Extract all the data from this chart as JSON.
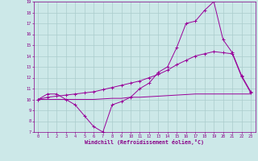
{
  "bg_color": "#cce8e8",
  "grid_color": "#aacccc",
  "line_color": "#990099",
  "xlabel": "Windchill (Refroidissement éolien,°C)",
  "xlabel_color": "#880088",
  "tick_color": "#880088",
  "xlim": [
    -0.5,
    23.5
  ],
  "ylim": [
    7,
    19
  ],
  "yticks": [
    7,
    8,
    9,
    10,
    11,
    12,
    13,
    14,
    15,
    16,
    17,
    18,
    19
  ],
  "xticks": [
    0,
    1,
    2,
    3,
    4,
    5,
    6,
    7,
    8,
    9,
    10,
    11,
    12,
    13,
    14,
    15,
    16,
    17,
    18,
    19,
    20,
    21,
    22,
    23
  ],
  "line1_x": [
    0,
    1,
    2,
    3,
    4,
    5,
    6,
    7,
    8,
    9,
    10,
    11,
    12,
    13,
    14,
    15,
    16,
    17,
    18,
    19,
    20,
    21,
    22,
    23
  ],
  "line1_y": [
    10.0,
    10.5,
    10.5,
    10.0,
    9.5,
    8.5,
    7.5,
    7.0,
    9.5,
    9.8,
    10.2,
    11.0,
    11.5,
    12.5,
    13.0,
    14.8,
    17.0,
    17.2,
    18.2,
    19.0,
    15.5,
    14.3,
    12.2,
    10.7
  ],
  "line2_x": [
    0,
    1,
    2,
    3,
    4,
    5,
    6,
    7,
    8,
    9,
    10,
    11,
    12,
    13,
    14,
    15,
    16,
    17,
    18,
    19,
    20,
    21,
    22,
    23
  ],
  "line2_y": [
    10.0,
    10.2,
    10.3,
    10.4,
    10.5,
    10.6,
    10.7,
    10.9,
    11.1,
    11.3,
    11.5,
    11.7,
    12.0,
    12.3,
    12.7,
    13.2,
    13.6,
    14.0,
    14.2,
    14.4,
    14.3,
    14.2,
    12.1,
    10.6
  ],
  "line3_x": [
    0,
    1,
    2,
    3,
    4,
    5,
    6,
    7,
    8,
    9,
    10,
    11,
    12,
    13,
    14,
    15,
    16,
    17,
    18,
    19,
    20,
    21,
    22,
    23
  ],
  "line3_y": [
    10.0,
    10.0,
    10.0,
    10.0,
    10.0,
    10.0,
    10.0,
    10.05,
    10.1,
    10.1,
    10.2,
    10.2,
    10.25,
    10.3,
    10.35,
    10.4,
    10.45,
    10.5,
    10.5,
    10.5,
    10.5,
    10.5,
    10.5,
    10.5
  ]
}
